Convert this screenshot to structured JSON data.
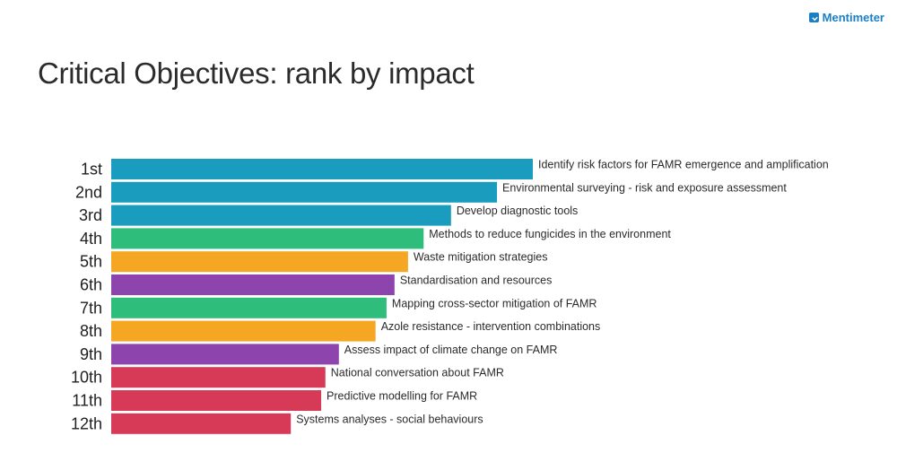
{
  "brand": {
    "name": "Mentimeter",
    "icon": "mentimeter-logo-icon",
    "color": "#1a7fc6"
  },
  "title": "Critical Objectives: rank by impact",
  "chart_data": {
    "type": "bar",
    "orientation": "horizontal",
    "title": "Critical Objectives: rank by impact",
    "xlabel": "",
    "ylabel": "",
    "categories": [
      "1st",
      "2nd",
      "3rd",
      "4th",
      "5th",
      "6th",
      "7th",
      "8th",
      "9th",
      "10th",
      "11th",
      "12th"
    ],
    "labels": [
      "Identify risk factors for FAMR emergence and amplification",
      "Environmental surveying - risk and exposure assessment",
      "Develop diagnostic tools",
      "Methods to reduce fungicides in the environment",
      "Waste mitigation strategies",
      "Standardisation and resources",
      "Mapping cross-sector mitigation of FAMR",
      "Azole resistance - intervention combinations",
      "Assess impact of climate change on FAMR",
      "National conversation about FAMR",
      "Predictive modelling for FAMR",
      "Systems analyses - social behaviours"
    ],
    "values": [
      100,
      91.5,
      80.6,
      74.1,
      70.4,
      67.2,
      65.3,
      62.7,
      54.0,
      50.8,
      49.8,
      42.6
    ],
    "colors": [
      "#1a9cbf",
      "#1a9cbf",
      "#1a9cbf",
      "#2ebd7a",
      "#f5a623",
      "#8e44ad",
      "#2ebd7a",
      "#f5a623",
      "#8e44ad",
      "#d63a56",
      "#d63a56",
      "#d63a56"
    ],
    "xlim": [
      0,
      100
    ],
    "grid": false,
    "legend": "none"
  }
}
